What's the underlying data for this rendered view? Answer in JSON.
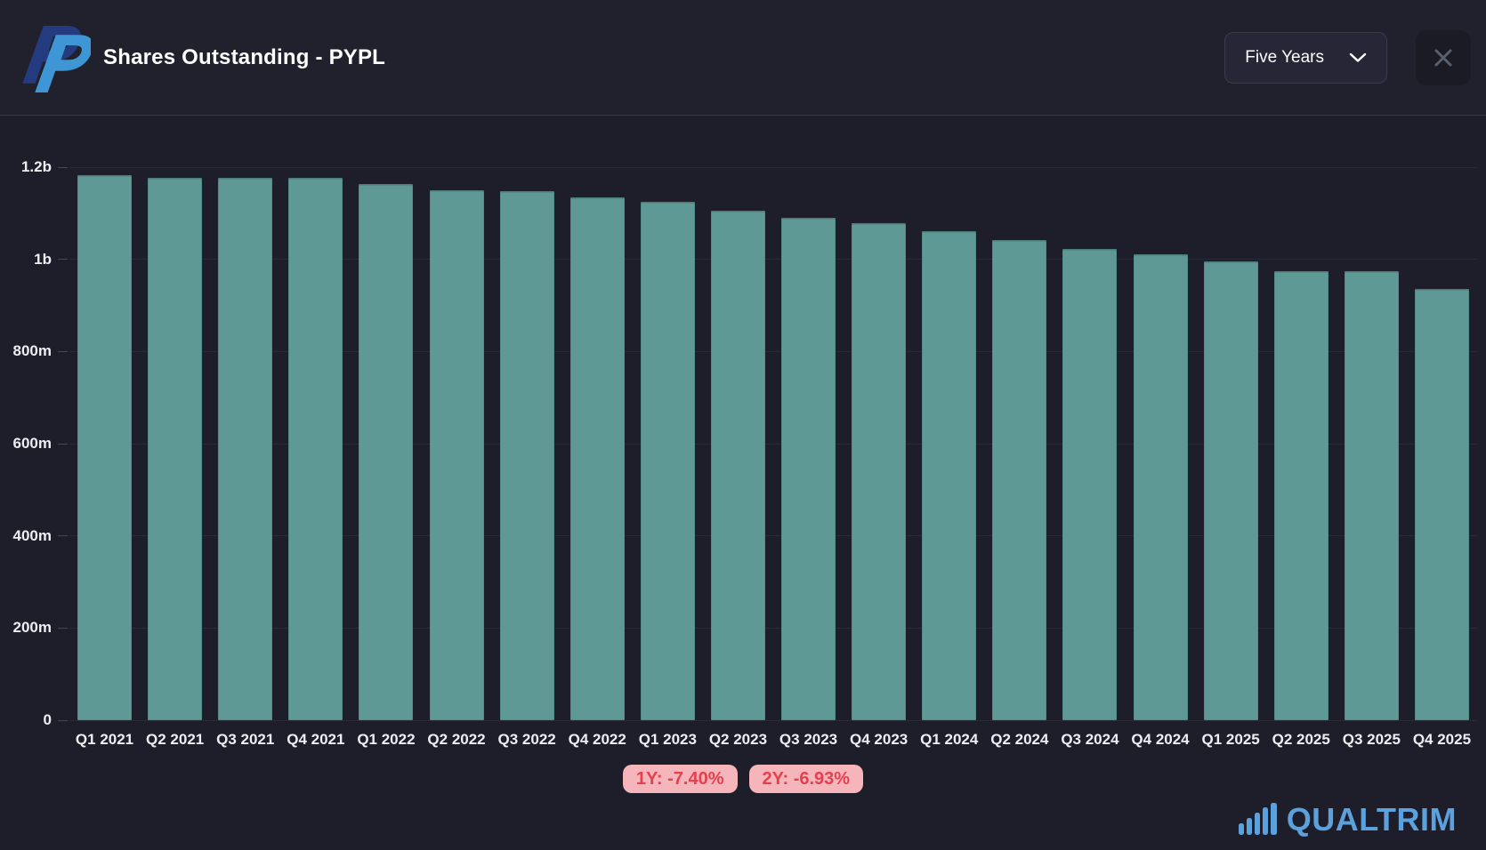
{
  "header": {
    "logo_icon": "paypal-logo",
    "title": "Shares Outstanding - PYPL",
    "range_selector": {
      "value": "Five Years",
      "icon": "chevron-down-icon"
    },
    "close_icon": "close-icon"
  },
  "chart_data": {
    "type": "bar",
    "title": "Shares Outstanding - PYPL",
    "unit": "shares, millions",
    "categories": [
      "Q1 2021",
      "Q2 2021",
      "Q3 2021",
      "Q4 2021",
      "Q1 2022",
      "Q2 2022",
      "Q3 2022",
      "Q4 2022",
      "Q1 2023",
      "Q2 2023",
      "Q3 2023",
      "Q4 2023",
      "Q1 2024",
      "Q2 2024",
      "Q3 2024",
      "Q4 2024",
      "Q1 2025",
      "Q2 2025",
      "Q3 2025",
      "Q4 2025"
    ],
    "values": [
      1183,
      1176,
      1176,
      1177,
      1164,
      1150,
      1148,
      1135,
      1124,
      1105,
      1090,
      1079,
      1062,
      1041,
      1022,
      1010,
      996,
      974,
      975,
      935
    ],
    "ylim": [
      0,
      1200
    ],
    "yticks": [
      {
        "value": 0,
        "label": "0"
      },
      {
        "value": 200,
        "label": "200m"
      },
      {
        "value": 400,
        "label": "400m"
      },
      {
        "value": 600,
        "label": "600m"
      },
      {
        "value": 800,
        "label": "800m"
      },
      {
        "value": 1000,
        "label": "1b"
      },
      {
        "value": 1200,
        "label": "1.2b"
      }
    ],
    "grid": "horizontal",
    "legend": "none",
    "bar_color": "#5e9996"
  },
  "badges": [
    {
      "label": "1Y: -7.40%"
    },
    {
      "label": "2Y: -6.93%"
    }
  ],
  "branding": {
    "watermark_text": "QUALTRIM",
    "watermark_icon": "bar-chart-icon"
  },
  "colors": {
    "background": "#1e1e2a",
    "header_background": "#21212e",
    "divider": "rgba(140,145,180,0.22)",
    "panel": "#262636",
    "panel_border": "#3b3b4c",
    "close_bg": "#1b1b26",
    "icon_muted": "#576070",
    "text_primary": "#ffffff",
    "axis_text": "#eeeef2",
    "grid_line": "rgba(255,255,255,0.055)",
    "tick": "rgba(255,255,255,0.18)",
    "bar_fill": "#5e9996",
    "badge_background": "#f5b5bb",
    "badge_text": "#e5404d",
    "brand_blue": "#5ca0dc",
    "paypal_navy": "#253b80",
    "paypal_blue": "#3f96d4"
  }
}
